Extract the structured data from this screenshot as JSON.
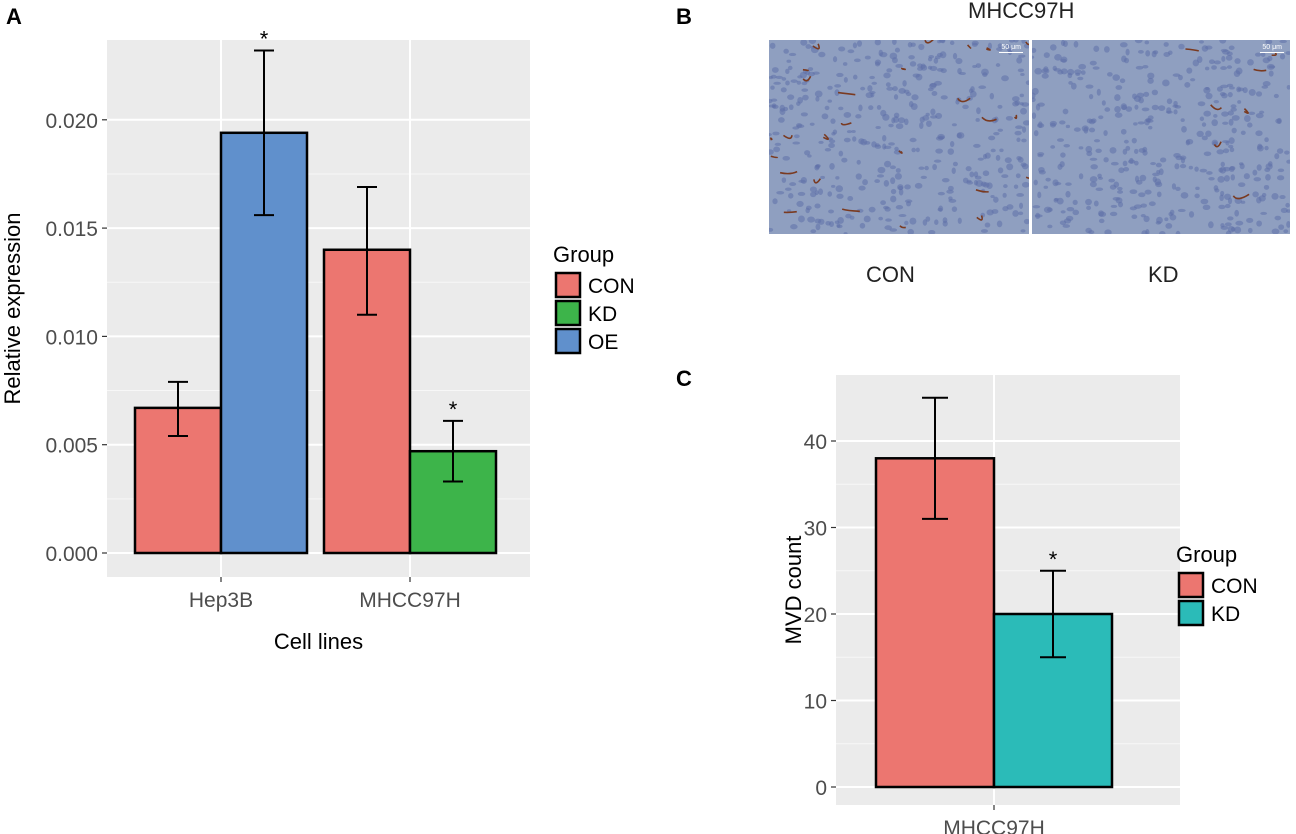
{
  "panels": {
    "a_letter": "A",
    "b_letter": "B",
    "c_letter": "C"
  },
  "micrograph": {
    "title": "MHCC97H",
    "left_label": "CON",
    "right_label": "KD",
    "scale_bar": "50 μm",
    "stain_color": "#7a3a20",
    "background_color": "#8f9fc0"
  },
  "chart_data": [
    {
      "type": "bar",
      "panel": "A",
      "title": "",
      "xlabel": "Cell lines",
      "ylabel": "Relative expression",
      "ylim": [
        -0.0011,
        0.0237
      ],
      "yticks": [
        0.0,
        0.005,
        0.01,
        0.015,
        0.02
      ],
      "ytick_labels": [
        "0.000",
        "0.005",
        "0.010",
        "0.015",
        "0.020"
      ],
      "categories": [
        "Hep3B",
        "MHCC97H"
      ],
      "grid": true,
      "legend": {
        "title": "Group",
        "position": "right",
        "entries": [
          {
            "label": "CON",
            "color": "#EC7670"
          },
          {
            "label": "KD",
            "color": "#3DB44A"
          },
          {
            "label": "OE",
            "color": "#6090CC"
          }
        ]
      },
      "bars": [
        {
          "category": "Hep3B",
          "group": "CON",
          "value": 0.0067,
          "err_low": 0.0054,
          "err_high": 0.0079,
          "annotation": ""
        },
        {
          "category": "Hep3B",
          "group": "OE",
          "value": 0.0194,
          "err_low": 0.0156,
          "err_high": 0.0232,
          "annotation": "*"
        },
        {
          "category": "MHCC97H",
          "group": "CON",
          "value": 0.014,
          "err_low": 0.011,
          "err_high": 0.0169,
          "annotation": ""
        },
        {
          "category": "MHCC97H",
          "group": "KD",
          "value": 0.0047,
          "err_low": 0.0033,
          "err_high": 0.0061,
          "annotation": "*"
        }
      ]
    },
    {
      "type": "bar",
      "panel": "C",
      "title": "",
      "xlabel": "",
      "ylabel": "MVD count",
      "ylim": [
        -2,
        47.5
      ],
      "yticks": [
        0,
        10,
        20,
        30,
        40
      ],
      "ytick_labels": [
        "0",
        "10",
        "20",
        "30",
        "40"
      ],
      "categories": [
        "MHCC97H"
      ],
      "grid": true,
      "legend": {
        "title": "Group",
        "position": "right",
        "entries": [
          {
            "label": "CON",
            "color": "#EC7670"
          },
          {
            "label": "KD",
            "color": "#2BBBB8"
          }
        ]
      },
      "bars": [
        {
          "category": "MHCC97H",
          "group": "CON",
          "value": 38,
          "err_low": 31,
          "err_high": 45,
          "annotation": ""
        },
        {
          "category": "MHCC97H",
          "group": "KD",
          "value": 20,
          "err_low": 15,
          "err_high": 25,
          "annotation": "*"
        }
      ]
    }
  ]
}
